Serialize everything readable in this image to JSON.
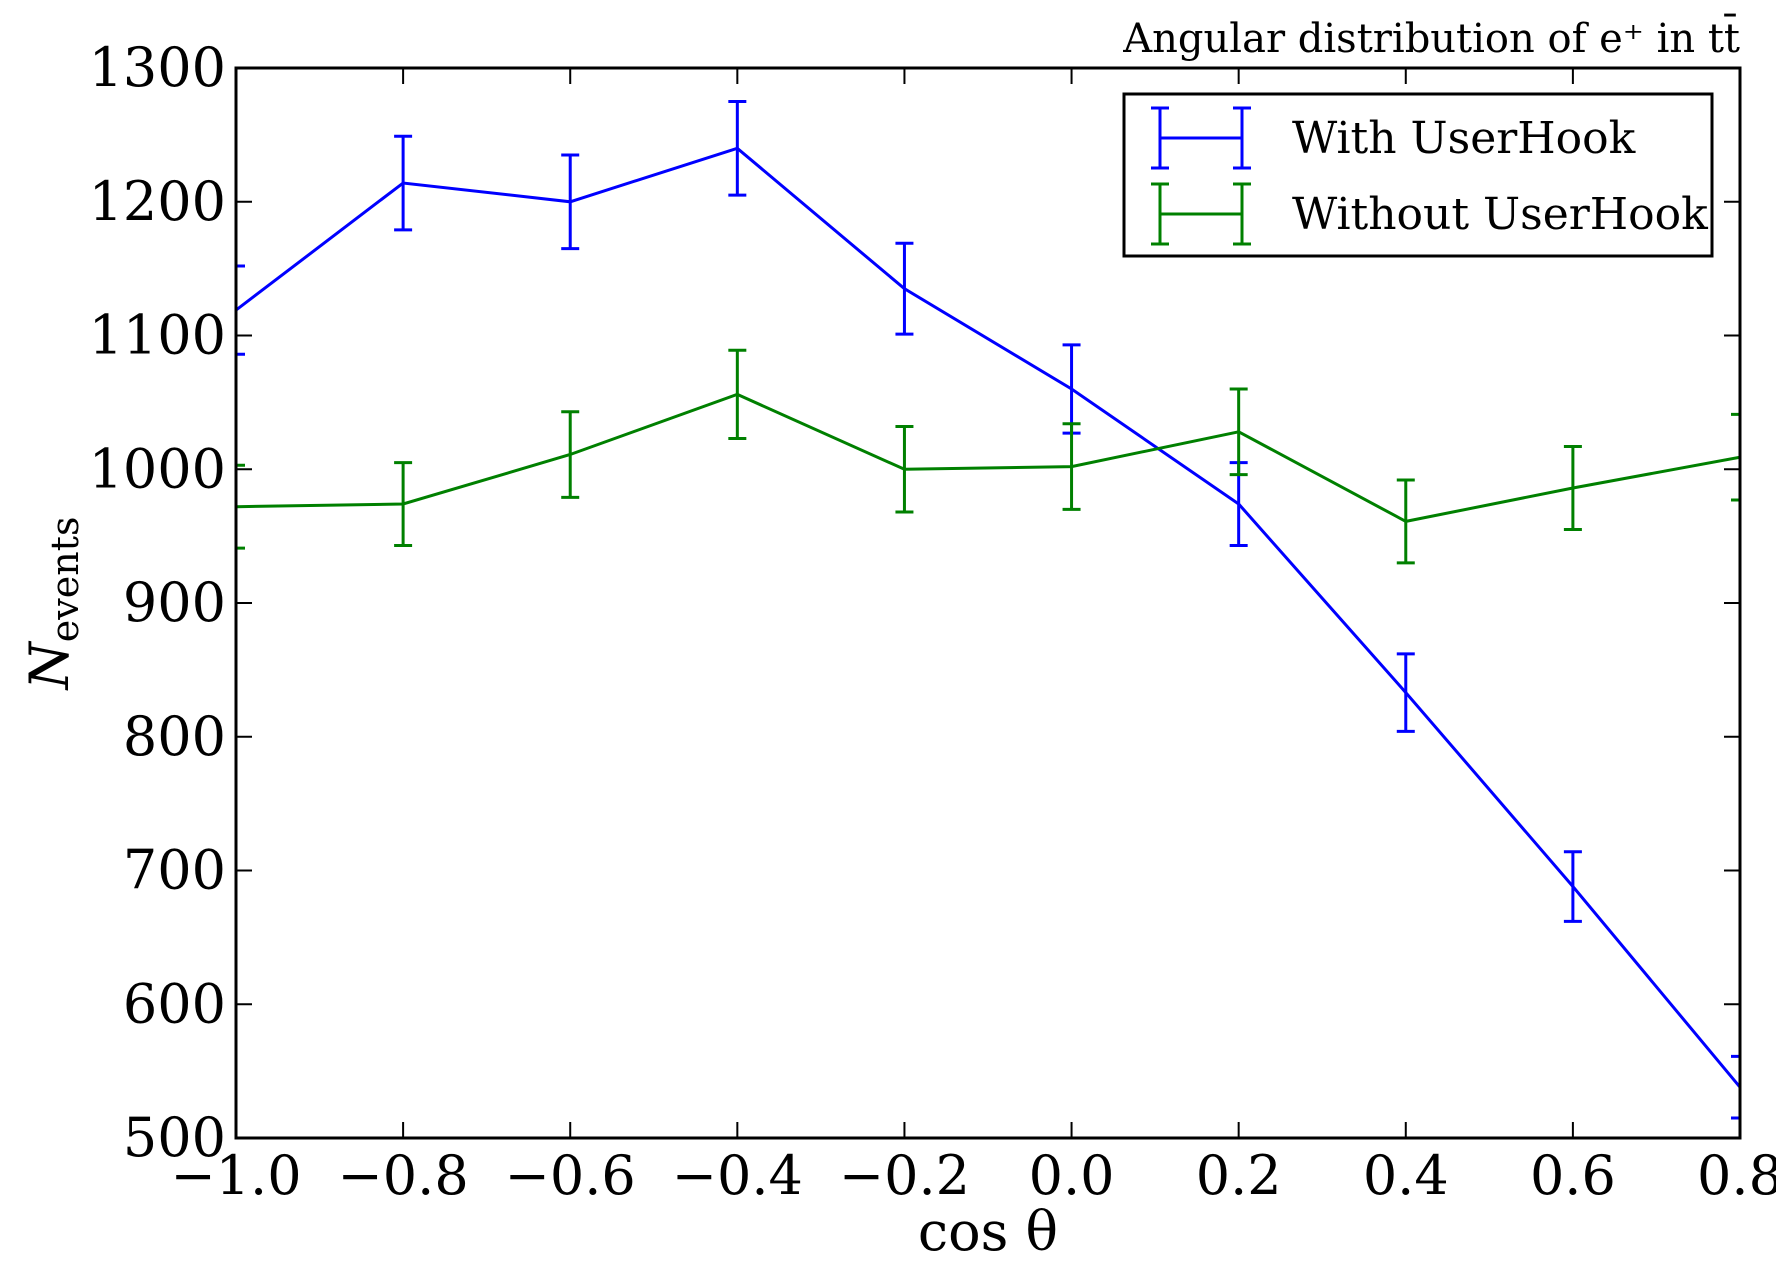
{
  "chart_data": {
    "type": "line",
    "title": "Angular distribution of e⁺ in tt̄",
    "xlabel": "cos θ",
    "ylabel": "N",
    "ylabel_subscript": "events",
    "xlim": [
      -1.0,
      0.8
    ],
    "ylim": [
      500,
      1300
    ],
    "x_ticks": [
      -1.0,
      -0.8,
      -0.6,
      -0.4,
      -0.2,
      0.0,
      0.2,
      0.4,
      0.6,
      0.8
    ],
    "x_tick_labels": [
      "−1.0",
      "−0.8",
      "−0.6",
      "−0.4",
      "−0.2",
      "0.0",
      "0.2",
      "0.4",
      "0.6",
      "0.8"
    ],
    "y_ticks": [
      500,
      600,
      700,
      800,
      900,
      1000,
      1100,
      1200,
      1300
    ],
    "y_tick_labels": [
      "500",
      "600",
      "700",
      "800",
      "900",
      "1000",
      "1100",
      "1200",
      "1300"
    ],
    "grid": false,
    "legend_position": "top-right",
    "error_bars": true,
    "x": [
      -1.0,
      -0.8,
      -0.6,
      -0.4,
      -0.2,
      0.0,
      0.2,
      0.4,
      0.6,
      0.8
    ],
    "series": [
      {
        "name": "With UserHook",
        "color": "#0000ff",
        "values": [
          1119,
          1214,
          1200,
          1240,
          1135,
          1060,
          974,
          833,
          688,
          538
        ],
        "errors": [
          33,
          35,
          35,
          35,
          34,
          33,
          31,
          29,
          26,
          23
        ]
      },
      {
        "name": "Without UserHook",
        "color": "#008000",
        "values": [
          972,
          974,
          1011,
          1056,
          1000,
          1002,
          1028,
          961,
          986,
          1009
        ],
        "errors": [
          31,
          31,
          32,
          33,
          32,
          32,
          32,
          31,
          31,
          32
        ]
      }
    ]
  }
}
